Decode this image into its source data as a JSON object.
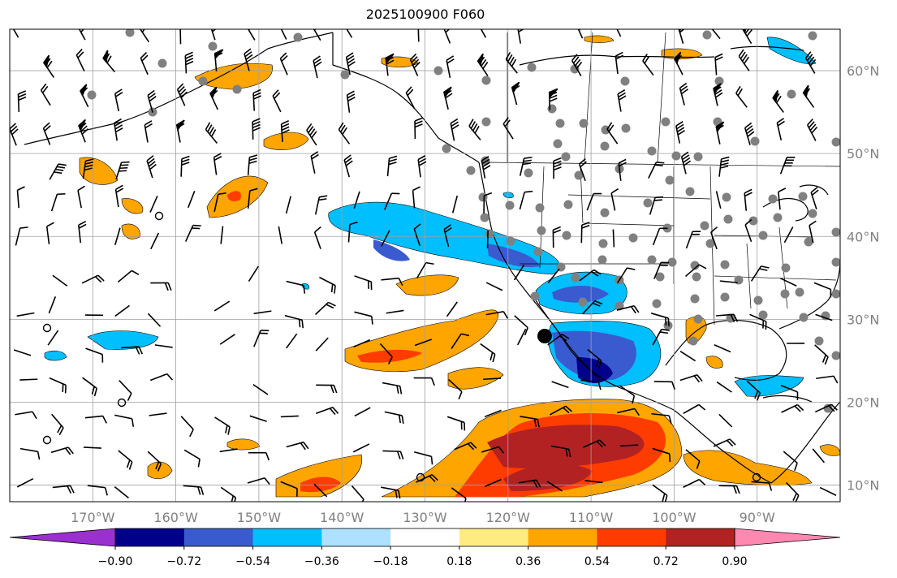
{
  "title": "2025100900 F060",
  "map": {
    "lon_labels": [
      "170°W",
      "160°W",
      "150°W",
      "140°W",
      "130°W",
      "120°W",
      "110°W",
      "100°W",
      "90°W"
    ],
    "lat_labels": [
      "60°N",
      "50°N",
      "40°N",
      "30°N",
      "20°N",
      "10°N"
    ],
    "lon_range": [
      -180,
      -80
    ],
    "lat_range": [
      8,
      65
    ],
    "lon_ticks": [
      -170,
      -160,
      -150,
      -140,
      -130,
      -120,
      -110,
      -100,
      -90
    ],
    "lat_ticks": [
      60,
      50,
      40,
      30,
      20,
      10
    ],
    "grid": true,
    "colors": {
      "ocean_bg": "#ffffff",
      "grid": "#a0a0a0",
      "station_dot": "#808080",
      "marker": "#000000"
    }
  },
  "colorbar": {
    "labels": [
      "−0.90",
      "−0.72",
      "−0.54",
      "−0.36",
      "−0.18",
      "0.18",
      "0.36",
      "0.54",
      "0.72",
      "0.90"
    ],
    "levels": [
      -0.9,
      -0.72,
      -0.54,
      -0.36,
      -0.18,
      0.18,
      0.36,
      0.54,
      0.72,
      0.9
    ],
    "colors": [
      "#9b30d0",
      "#00008b",
      "#3a5bcf",
      "#00bfff",
      "#aee0ff",
      "#ffffff",
      "#ffec80",
      "#ffa500",
      "#ff3c00",
      "#b22222",
      "#ff88b0"
    ]
  }
}
